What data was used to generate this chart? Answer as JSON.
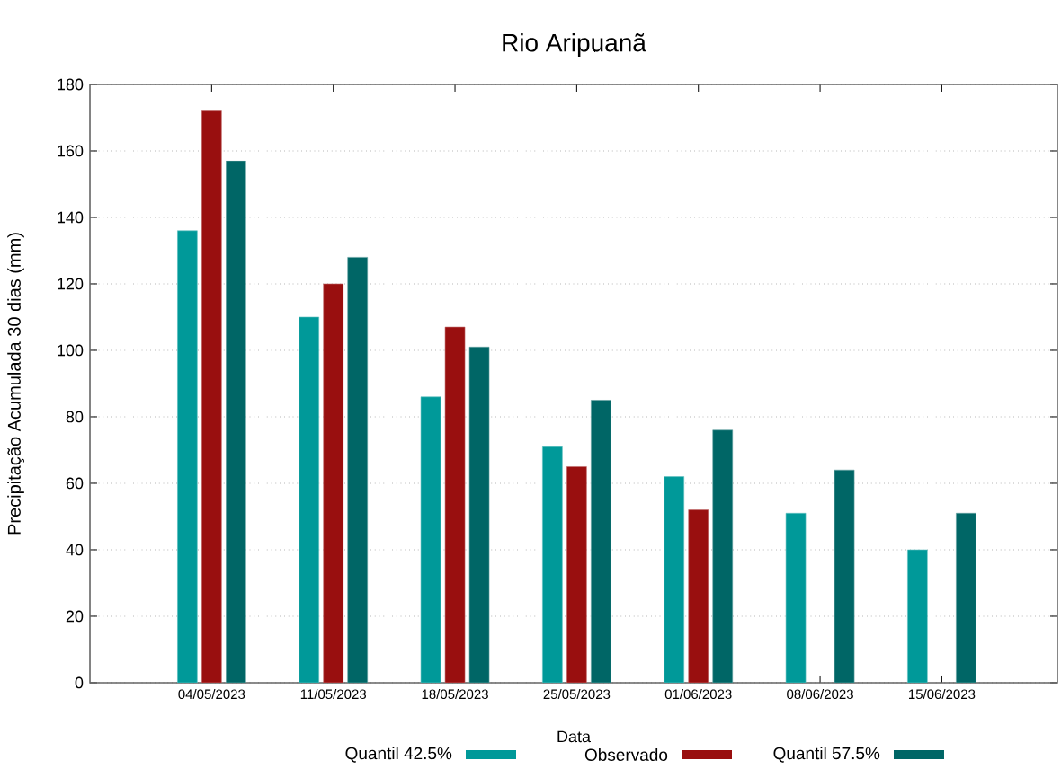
{
  "chart_data": {
    "type": "bar",
    "title": "Rio Aripuanã",
    "xlabel": "Data",
    "ylabel": "Precipitação Acumulada 30 dias (mm)",
    "categories": [
      "04/05/2023",
      "11/05/2023",
      "18/05/2023",
      "25/05/2023",
      "01/06/2023",
      "08/06/2023",
      "15/06/2023"
    ],
    "series": [
      {
        "name": "Quantil 42.5%",
        "color": "#009999",
        "values": [
          136,
          110,
          86,
          71,
          62,
          51,
          40
        ]
      },
      {
        "name": "Observado",
        "color": "#990f0f",
        "values": [
          172,
          120,
          107,
          65,
          52,
          null,
          null
        ]
      },
      {
        "name": "Quantil 57.5%",
        "color": "#006666",
        "values": [
          157,
          128,
          101,
          85,
          76,
          64,
          51
        ]
      }
    ],
    "ylim": [
      0,
      180
    ],
    "yticks": [
      0,
      20,
      40,
      60,
      80,
      100,
      120,
      140,
      160,
      180
    ],
    "grid": "y",
    "legend": "bottom"
  }
}
